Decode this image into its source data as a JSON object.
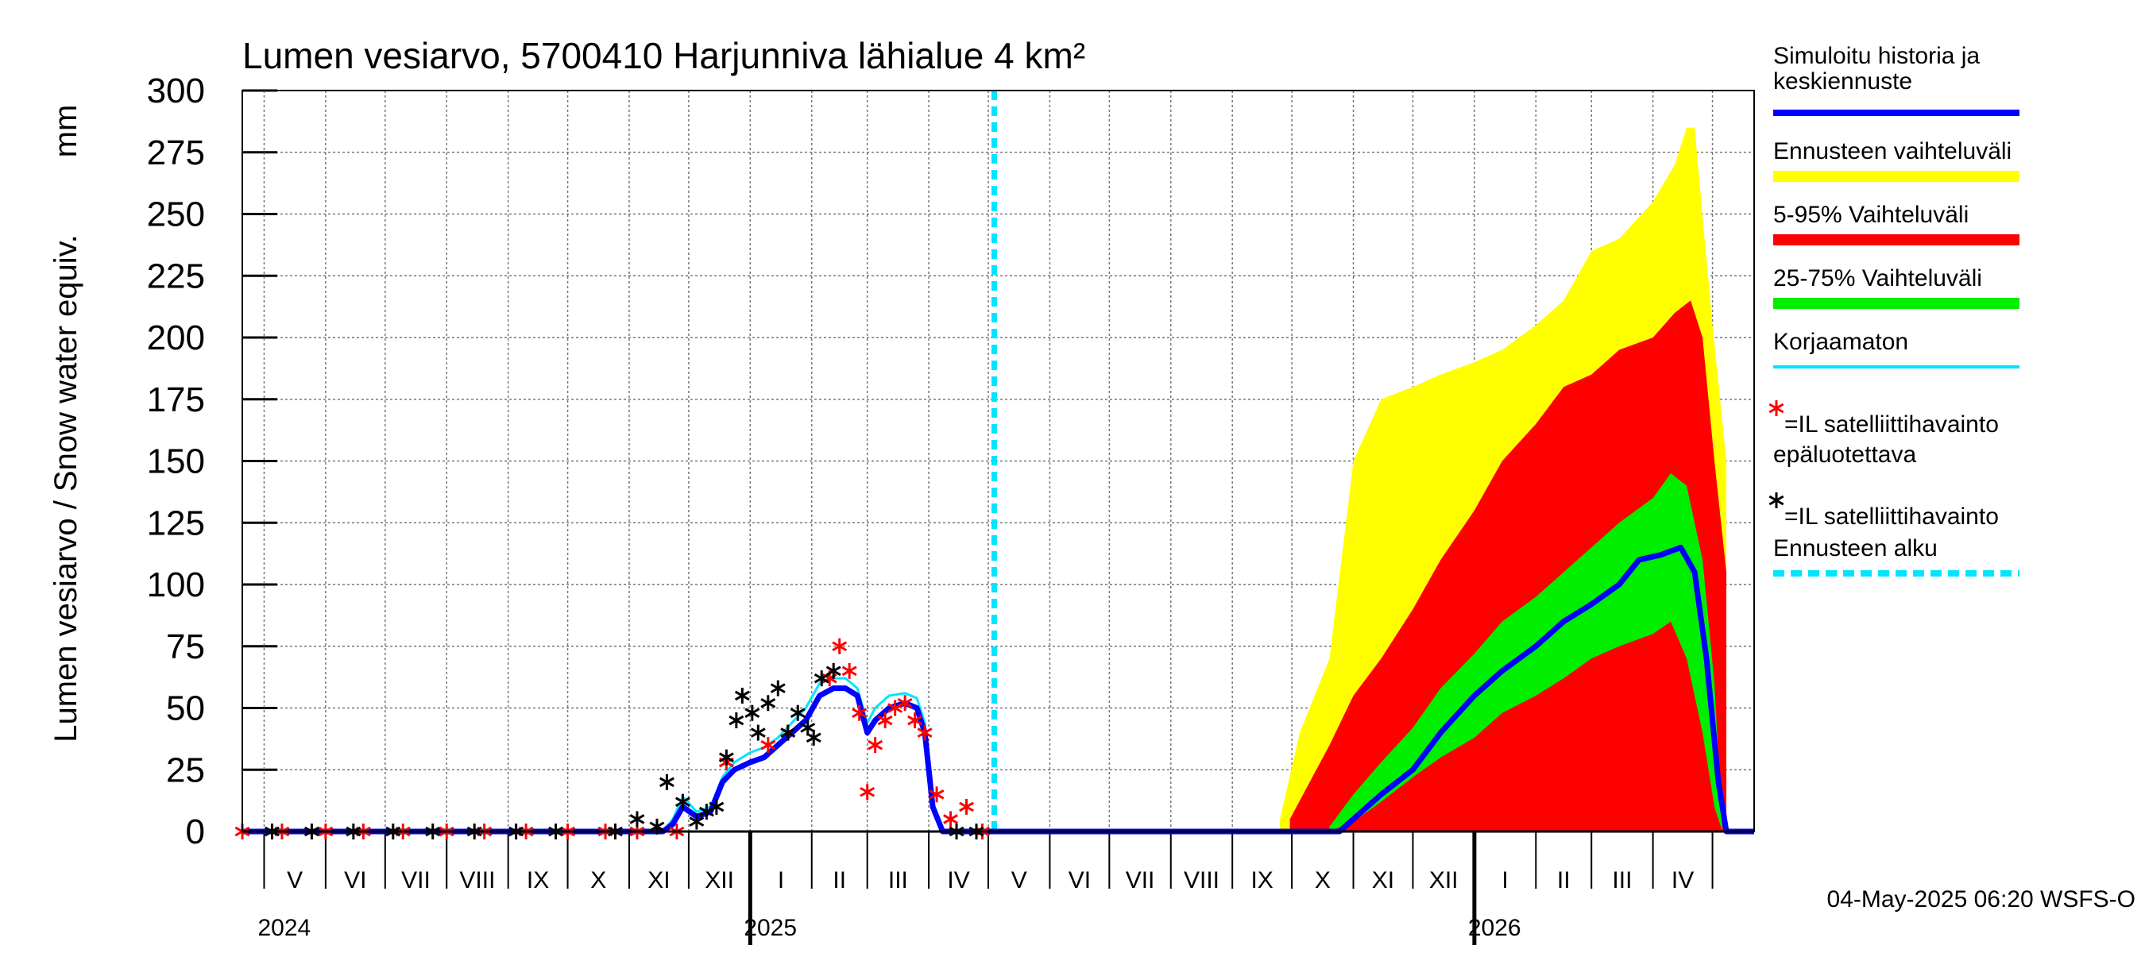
{
  "chart_data": {
    "type": "area",
    "title": "Lumen vesiarvo, 5700410 Harjunniva lähialue 4 km²",
    "ylabel": "Lumen vesiarvo / Snow water equiv.",
    "yunit": "mm",
    "ylim": [
      0,
      300
    ],
    "yticks": [
      0,
      25,
      50,
      75,
      100,
      125,
      150,
      175,
      200,
      225,
      250,
      275,
      300
    ],
    "xlim": [
      "2024-04-20",
      "2026-05-22"
    ],
    "grid": true,
    "forecast_start": "2025-05-04",
    "months": [
      {
        "label": "V",
        "start": "2024-05-01"
      },
      {
        "label": "VI",
        "start": "2024-06-01"
      },
      {
        "label": "VII",
        "start": "2024-07-01"
      },
      {
        "label": "VIII",
        "start": "2024-08-01"
      },
      {
        "label": "IX",
        "start": "2024-09-01"
      },
      {
        "label": "X",
        "start": "2024-10-01"
      },
      {
        "label": "XI",
        "start": "2024-11-01"
      },
      {
        "label": "XII",
        "start": "2024-12-01"
      },
      {
        "label": "I",
        "start": "2025-01-01"
      },
      {
        "label": "II",
        "start": "2025-02-01"
      },
      {
        "label": "III",
        "start": "2025-03-01"
      },
      {
        "label": "IV",
        "start": "2025-04-01"
      },
      {
        "label": "V",
        "start": "2025-05-01"
      },
      {
        "label": "VI",
        "start": "2025-06-01"
      },
      {
        "label": "VII",
        "start": "2025-07-01"
      },
      {
        "label": "VIII",
        "start": "2025-08-01"
      },
      {
        "label": "IX",
        "start": "2025-09-01"
      },
      {
        "label": "X",
        "start": "2025-10-01"
      },
      {
        "label": "XI",
        "start": "2025-11-01"
      },
      {
        "label": "XII",
        "start": "2025-12-01"
      },
      {
        "label": "I",
        "start": "2026-01-01"
      },
      {
        "label": "II",
        "start": "2026-02-01"
      },
      {
        "label": "III",
        "start": "2026-03-01"
      },
      {
        "label": "IV",
        "start": "2026-04-01"
      },
      {
        "label": "",
        "start": "2026-05-01"
      }
    ],
    "years": [
      {
        "label": "2024",
        "date": "2024-05-01"
      },
      {
        "label": "2025",
        "date": "2025-01-01"
      },
      {
        "label": "2026",
        "date": "2026-01-01"
      }
    ],
    "bands": [
      {
        "name": "Ennusteen vaihteluväli",
        "color": "#ffff00",
        "x": [
          "2025-09-25",
          "2025-10-05",
          "2025-10-20",
          "2025-11-01",
          "2025-11-15",
          "2025-12-01",
          "2025-12-15",
          "2026-01-01",
          "2026-01-15",
          "2026-02-01",
          "2026-02-15",
          "2026-03-01",
          "2026-03-15",
          "2026-04-01",
          "2026-04-12",
          "2026-04-18",
          "2026-04-22",
          "2026-05-01",
          "2026-05-08"
        ],
        "upper": [
          5,
          40,
          70,
          150,
          175,
          180,
          185,
          190,
          195,
          205,
          215,
          235,
          240,
          255,
          270,
          285,
          285,
          205,
          150
        ],
        "lower": [
          0,
          0,
          0,
          0,
          0,
          0,
          0,
          0,
          0,
          0,
          0,
          0,
          0,
          0,
          0,
          0,
          0,
          0,
          0
        ]
      },
      {
        "name": "5-95% Vaihteluväli",
        "color": "#ff0000",
        "x": [
          "2025-09-30",
          "2025-10-10",
          "2025-10-20",
          "2025-11-01",
          "2025-11-15",
          "2025-12-01",
          "2025-12-15",
          "2026-01-01",
          "2026-01-15",
          "2026-02-01",
          "2026-02-15",
          "2026-03-01",
          "2026-03-15",
          "2026-04-01",
          "2026-04-12",
          "2026-04-20",
          "2026-04-26",
          "2026-05-02",
          "2026-05-08"
        ],
        "upper": [
          5,
          20,
          35,
          55,
          70,
          90,
          110,
          130,
          150,
          165,
          180,
          185,
          195,
          200,
          210,
          215,
          200,
          150,
          105
        ],
        "lower": [
          0,
          0,
          0,
          0,
          0,
          0,
          0,
          0,
          0,
          0,
          0,
          0,
          0,
          0,
          0,
          0,
          0,
          0,
          0
        ]
      },
      {
        "name": "25-75% Vaihteluväli",
        "color": "#00ee00",
        "x": [
          "2025-10-20",
          "2025-11-01",
          "2025-11-15",
          "2025-12-01",
          "2025-12-15",
          "2026-01-01",
          "2026-01-15",
          "2026-02-01",
          "2026-02-15",
          "2026-03-01",
          "2026-03-15",
          "2026-04-01",
          "2026-04-10",
          "2026-04-18",
          "2026-04-26",
          "2026-05-02",
          "2026-05-06"
        ],
        "upper": [
          2,
          15,
          28,
          42,
          58,
          72,
          85,
          95,
          105,
          115,
          125,
          135,
          145,
          140,
          110,
          60,
          0
        ],
        "lower": [
          0,
          4,
          12,
          22,
          30,
          38,
          48,
          55,
          62,
          70,
          75,
          80,
          85,
          70,
          40,
          10,
          0
        ]
      }
    ],
    "series": [
      {
        "name": "Simuloitu historia ja keskiennuste",
        "color": "#0000ff",
        "x": [
          "2024-04-20",
          "2024-11-18",
          "2024-11-23",
          "2024-11-28",
          "2024-12-05",
          "2024-12-12",
          "2024-12-18",
          "2024-12-24",
          "2025-01-01",
          "2025-01-08",
          "2025-01-15",
          "2025-01-22",
          "2025-01-29",
          "2025-02-05",
          "2025-02-12",
          "2025-02-18",
          "2025-02-24",
          "2025-03-01",
          "2025-03-05",
          "2025-03-12",
          "2025-03-20",
          "2025-03-26",
          "2025-03-30",
          "2025-04-03",
          "2025-04-08",
          "2025-05-04",
          "2025-10-25",
          "2025-11-01",
          "2025-11-15",
          "2025-12-01",
          "2025-12-15",
          "2026-01-01",
          "2026-01-15",
          "2026-02-01",
          "2026-02-15",
          "2026-03-01",
          "2026-03-15",
          "2026-03-25",
          "2026-04-05",
          "2026-04-15",
          "2026-04-22",
          "2026-04-28",
          "2026-05-04",
          "2026-05-08",
          "2026-05-22"
        ],
        "y": [
          0,
          0,
          3,
          10,
          6,
          8,
          20,
          25,
          28,
          30,
          35,
          40,
          45,
          55,
          58,
          58,
          55,
          40,
          45,
          50,
          52,
          50,
          40,
          10,
          0,
          0,
          0,
          5,
          15,
          25,
          40,
          55,
          65,
          75,
          85,
          92,
          100,
          110,
          112,
          115,
          105,
          70,
          20,
          0,
          0
        ]
      },
      {
        "name": "Korjaamaton",
        "color": "#00e5ff",
        "x": [
          "2024-04-20",
          "2024-11-18",
          "2024-11-23",
          "2024-11-28",
          "2024-12-05",
          "2024-12-12",
          "2024-12-18",
          "2024-12-24",
          "2025-01-01",
          "2025-01-08",
          "2025-01-15",
          "2025-01-22",
          "2025-01-29",
          "2025-02-05",
          "2025-02-12",
          "2025-02-18",
          "2025-02-24",
          "2025-03-01",
          "2025-03-05",
          "2025-03-12",
          "2025-03-20",
          "2025-03-26",
          "2025-03-30",
          "2025-04-03",
          "2025-04-08",
          "2025-05-04"
        ],
        "y": [
          0,
          0,
          5,
          14,
          8,
          10,
          22,
          28,
          32,
          34,
          38,
          44,
          50,
          60,
          62,
          62,
          58,
          44,
          50,
          55,
          56,
          54,
          44,
          12,
          0,
          0
        ]
      }
    ],
    "markers": [
      {
        "name": "IL satelliittihavainto epäluotettava",
        "symbol": "*",
        "color": "#ff0000",
        "x": [
          "2024-04-20",
          "2024-05-10",
          "2024-06-01",
          "2024-06-20",
          "2024-07-10",
          "2024-08-01",
          "2024-08-20",
          "2024-09-10",
          "2024-10-01",
          "2024-10-20",
          "2024-11-05",
          "2024-11-25",
          "2024-12-20",
          "2025-01-10",
          "2025-01-20",
          "2025-02-10",
          "2025-02-15",
          "2025-02-20",
          "2025-02-25",
          "2025-03-01",
          "2025-03-05",
          "2025-03-10",
          "2025-03-15",
          "2025-03-20",
          "2025-03-25",
          "2025-03-30",
          "2025-04-05",
          "2025-04-12",
          "2025-04-20",
          "2025-04-28"
        ],
        "y": [
          0,
          0,
          0,
          0,
          0,
          0,
          0,
          0,
          0,
          0,
          0,
          0,
          28,
          35,
          40,
          62,
          75,
          65,
          48,
          16,
          35,
          45,
          50,
          52,
          45,
          40,
          15,
          5,
          10,
          0
        ]
      },
      {
        "name": "IL satelliittihavainto",
        "symbol": "*",
        "color": "#000000",
        "x": [
          "2024-05-05",
          "2024-05-25",
          "2024-06-15",
          "2024-07-05",
          "2024-07-25",
          "2024-08-15",
          "2024-09-05",
          "2024-09-25",
          "2024-10-25",
          "2024-11-05",
          "2024-11-15",
          "2024-11-20",
          "2024-11-28",
          "2024-12-05",
          "2024-12-10",
          "2024-12-15",
          "2024-12-20",
          "2024-12-25",
          "2024-12-28",
          "2025-01-02",
          "2025-01-05",
          "2025-01-10",
          "2025-01-15",
          "2025-01-20",
          "2025-01-25",
          "2025-01-30",
          "2025-02-02",
          "2025-02-06",
          "2025-02-12",
          "2025-04-15",
          "2025-04-25"
        ],
        "y": [
          0,
          0,
          0,
          0,
          0,
          0,
          0,
          0,
          0,
          5,
          2,
          20,
          12,
          4,
          8,
          10,
          30,
          45,
          55,
          48,
          40,
          52,
          58,
          40,
          48,
          42,
          38,
          62,
          65,
          0,
          0
        ]
      }
    ],
    "legend": [
      {
        "label": "Simuloitu historia ja",
        "label2": "keskiennuste",
        "kind": "line",
        "color": "#0000ff"
      },
      {
        "label": "Ennusteen vaihteluväli",
        "kind": "thick",
        "color": "#ffff00"
      },
      {
        "label": "5-95% Vaihteluväli",
        "kind": "thick",
        "color": "#ff0000"
      },
      {
        "label": "25-75% Vaihteluväli",
        "kind": "thick",
        "color": "#00ee00"
      },
      {
        "label": "Korjaamaton",
        "kind": "thin",
        "color": "#00e5ff"
      },
      {
        "label": "=IL satelliittihavainto",
        "label_above": "epäluotettava",
        "kind": "star",
        "color": "#ff0000"
      },
      {
        "label": "=IL satelliittihavainto",
        "kind": "star",
        "color": "#000000"
      },
      {
        "label": "Ennusteen alku",
        "kind": "dash",
        "color": "#00e5ff"
      }
    ],
    "legend_position": "right",
    "footer": "04-May-2025 06:20 WSFS-O"
  }
}
